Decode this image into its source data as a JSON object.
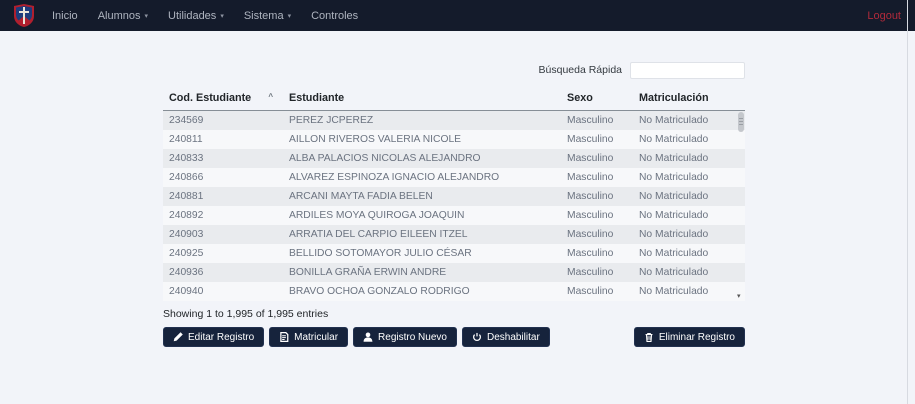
{
  "navbar": {
    "brand": "school-crest",
    "items": [
      {
        "label": "Inicio",
        "dropdown": false
      },
      {
        "label": "Alumnos",
        "dropdown": true
      },
      {
        "label": "Utilidades",
        "dropdown": true
      },
      {
        "label": "Sistema",
        "dropdown": true
      },
      {
        "label": "Controles",
        "dropdown": false
      }
    ],
    "logout_label": "Logout"
  },
  "search": {
    "label": "Búsqueda Rápida",
    "value": ""
  },
  "table": {
    "headers": [
      "Cod. Estudiante",
      "Estudiante",
      "Sexo",
      "Matriculación"
    ],
    "sort_indicator": "^",
    "rows": [
      {
        "code": "234569",
        "name": "PEREZ JCPEREZ",
        "sex": "Masculino",
        "enrollment": "No Matriculado"
      },
      {
        "code": "240811",
        "name": "AILLON RIVEROS VALERIA NICOLE",
        "sex": "Masculino",
        "enrollment": "No Matriculado"
      },
      {
        "code": "240833",
        "name": "ALBA PALACIOS NICOLAS ALEJANDRO",
        "sex": "Masculino",
        "enrollment": "No Matriculado"
      },
      {
        "code": "240866",
        "name": "ALVAREZ ESPINOZA IGNACIO ALEJANDRO",
        "sex": "Masculino",
        "enrollment": "No Matriculado"
      },
      {
        "code": "240881",
        "name": "ARCANI MAYTA FADIA BELEN",
        "sex": "Masculino",
        "enrollment": "No Matriculado"
      },
      {
        "code": "240892",
        "name": "ARDILES MOYA QUIROGA JOAQUIN",
        "sex": "Masculino",
        "enrollment": "No Matriculado"
      },
      {
        "code": "240903",
        "name": "ARRATIA DEL CARPIO EILEEN ITZEL",
        "sex": "Masculino",
        "enrollment": "No Matriculado"
      },
      {
        "code": "240925",
        "name": "BELLIDO SOTOMAYOR JULIO CÉSAR",
        "sex": "Masculino",
        "enrollment": "No Matriculado"
      },
      {
        "code": "240936",
        "name": "BONILLA GRAÑA ERWIN ANDRE",
        "sex": "Masculino",
        "enrollment": "No Matriculado"
      },
      {
        "code": "240940",
        "name": "BRAVO OCHOA GONZALO RODRIGO",
        "sex": "Masculino",
        "enrollment": "No Matriculado"
      }
    ]
  },
  "footer": {
    "showing": "Showing 1 to 1,995 of 1,995 entries"
  },
  "actions": {
    "edit": {
      "label": "Editar Registro",
      "icon": "pencil-icon"
    },
    "enroll": {
      "label": "Matricular",
      "icon": "clipboard-icon"
    },
    "new": {
      "label": "Registro Nuevo",
      "icon": "person-icon"
    },
    "disable": {
      "label": "Deshabilitar",
      "icon": "power-icon"
    },
    "delete": {
      "label": "Eliminar Registro",
      "icon": "trash-icon"
    }
  },
  "colors": {
    "navbar_bg": "#141b2b",
    "logout_red": "#b02a3b",
    "button_bg": "#16233c",
    "stripe_odd": "#e9ebee",
    "stripe_even": "#f7f8fa",
    "page_bg": "#f2f4f9"
  }
}
